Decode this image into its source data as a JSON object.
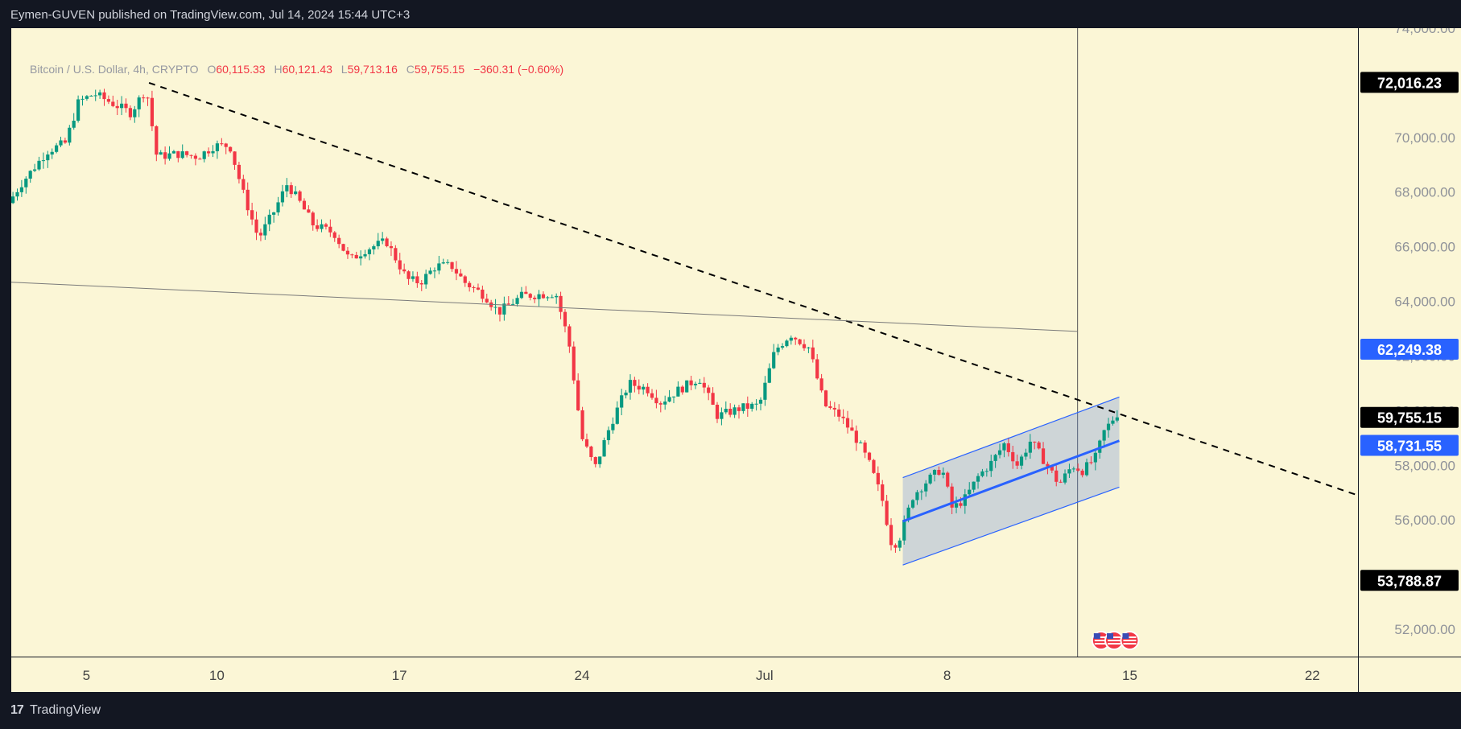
{
  "header": {
    "published": "Eymen-GUVEN published on TradingView.com, Jul 14, 2024 15:44 UTC+3"
  },
  "legend": {
    "symbol": "Bitcoin / U.S. Dollar, 4h, CRYPTO",
    "open_label": "O",
    "open": "60,115.33",
    "high_label": "H",
    "high": "60,121.43",
    "low_label": "L",
    "low": "59,713.16",
    "close_label": "C",
    "close": "59,755.15",
    "change": "−360.31 (−0.60%)"
  },
  "footer": {
    "logo": "17",
    "brand": "TradingView"
  },
  "chart_data": {
    "type": "candlestick",
    "x_ticks": [
      {
        "label": "5",
        "day": 5
      },
      {
        "label": "10",
        "day": 10
      },
      {
        "label": "17",
        "day": 17
      },
      {
        "label": "24",
        "day": 24
      },
      {
        "label": "Jul",
        "day": 31
      },
      {
        "label": "8",
        "day": 38
      },
      {
        "label": "15",
        "day": 45
      },
      {
        "label": "22",
        "day": 52
      }
    ],
    "y_ticks": [
      52000,
      54000,
      56000,
      58000,
      60000,
      62000,
      64000,
      66000,
      68000,
      70000,
      72000,
      74000
    ],
    "y_tick_labels": [
      "52,000.00",
      "54,000.00",
      "56,000.00",
      "58,000.00",
      "60,000.00",
      "62,000.00",
      "64,000.00",
      "66,000.00",
      "68,000.00",
      "70,000.00",
      "72,000.00",
      "74,000.00"
    ],
    "ylim": [
      51000,
      74000
    ],
    "xlim_days": [
      2.12,
      53.75
    ],
    "up_color": "#089981",
    "down_color": "#f23645",
    "price_tags": [
      {
        "label": "72,016.23",
        "value": 72016.23,
        "color": "#000000"
      },
      {
        "label": "62,249.38",
        "value": 62249.38,
        "color": "#2962ff"
      },
      {
        "label": "59,755.15",
        "value": 59755.15,
        "color": "#000000"
      },
      {
        "label": "58,731.55",
        "value": 58731.55,
        "color": "#2962ff"
      },
      {
        "label": "53,788.87",
        "value": 53788.87,
        "color": "#000000"
      }
    ],
    "anchors": [
      [
        2.12,
        67600
      ],
      [
        2.6,
        68300
      ],
      [
        3.1,
        68900
      ],
      [
        3.6,
        69500
      ],
      [
        4.3,
        69800
      ],
      [
        4.8,
        71300
      ],
      [
        5.4,
        71600
      ],
      [
        6.2,
        71200
      ],
      [
        6.8,
        70900
      ],
      [
        7.4,
        71800
      ],
      [
        7.8,
        69300
      ],
      [
        8.6,
        69400
      ],
      [
        9.4,
        69300
      ],
      [
        10.0,
        69700
      ],
      [
        10.6,
        69700
      ],
      [
        11.1,
        68000
      ],
      [
        11.7,
        66300
      ],
      [
        12.3,
        67300
      ],
      [
        12.8,
        68300
      ],
      [
        13.3,
        67600
      ],
      [
        13.8,
        66800
      ],
      [
        14.6,
        66500
      ],
      [
        15.2,
        65500
      ],
      [
        15.8,
        65900
      ],
      [
        16.6,
        66200
      ],
      [
        17.4,
        64800
      ],
      [
        17.9,
        64700
      ],
      [
        18.5,
        65300
      ],
      [
        19.1,
        65300
      ],
      [
        19.6,
        64700
      ],
      [
        20.4,
        64200
      ],
      [
        20.9,
        63600
      ],
      [
        21.8,
        64200
      ],
      [
        23.1,
        64300
      ],
      [
        23.6,
        62500
      ],
      [
        24.1,
        59000
      ],
      [
        24.6,
        57900
      ],
      [
        25.2,
        59500
      ],
      [
        25.9,
        61000
      ],
      [
        26.6,
        60800
      ],
      [
        27.1,
        60300
      ],
      [
        27.7,
        60700
      ],
      [
        28.6,
        61200
      ],
      [
        29.3,
        59800
      ],
      [
        30.2,
        60100
      ],
      [
        30.9,
        60200
      ],
      [
        31.5,
        62200
      ],
      [
        32.1,
        62800
      ],
      [
        32.8,
        62300
      ],
      [
        33.4,
        60200
      ],
      [
        34.0,
        59800
      ],
      [
        34.6,
        59000
      ],
      [
        35.1,
        58100
      ],
      [
        35.6,
        56800
      ],
      [
        36.0,
        55000
      ],
      [
        36.3,
        55400
      ],
      [
        36.8,
        56900
      ],
      [
        37.3,
        57400
      ],
      [
        37.9,
        57900
      ],
      [
        38.3,
        56400
      ],
      [
        38.8,
        56800
      ],
      [
        39.3,
        57600
      ],
      [
        39.8,
        58100
      ],
      [
        40.3,
        58800
      ],
      [
        40.8,
        58000
      ],
      [
        41.3,
        58900
      ],
      [
        41.8,
        58200
      ],
      [
        42.4,
        57300
      ],
      [
        42.9,
        58000
      ],
      [
        43.3,
        57800
      ],
      [
        43.8,
        58300
      ],
      [
        44.1,
        59200
      ],
      [
        44.5,
        59755
      ]
    ],
    "trend_lines": [
      {
        "name": "dashed-resistance",
        "style": "dashed",
        "color": "#000000",
        "p1": {
          "day": 7.4,
          "value": 72000
        },
        "p2": {
          "day": 53.75,
          "value": 56900
        }
      },
      {
        "name": "support-line",
        "style": "solid",
        "color": "#7a7a7a",
        "p1": {
          "day": 2.12,
          "value": 64700
        },
        "p2": {
          "day": 43.0,
          "value": 62900
        }
      },
      {
        "name": "channel-upper",
        "style": "solid",
        "color": "#2962ff",
        "p1": {
          "day": 36.3,
          "value": 57550
        },
        "p2": {
          "day": 44.6,
          "value": 60500
        }
      },
      {
        "name": "channel-mid",
        "style": "solid",
        "color": "#2962ff",
        "p1": {
          "day": 36.3,
          "value": 55950
        },
        "p2": {
          "day": 44.6,
          "value": 58900
        }
      },
      {
        "name": "channel-lower",
        "style": "solid",
        "color": "#2962ff",
        "p1": {
          "day": 36.3,
          "value": 54350
        },
        "p2": {
          "day": 44.6,
          "value": 57200
        }
      }
    ],
    "vertical_line_day": 43.0,
    "event_icons": [
      {
        "day": 43.9
      },
      {
        "day": 44.4
      },
      {
        "day": 45.0
      }
    ]
  }
}
